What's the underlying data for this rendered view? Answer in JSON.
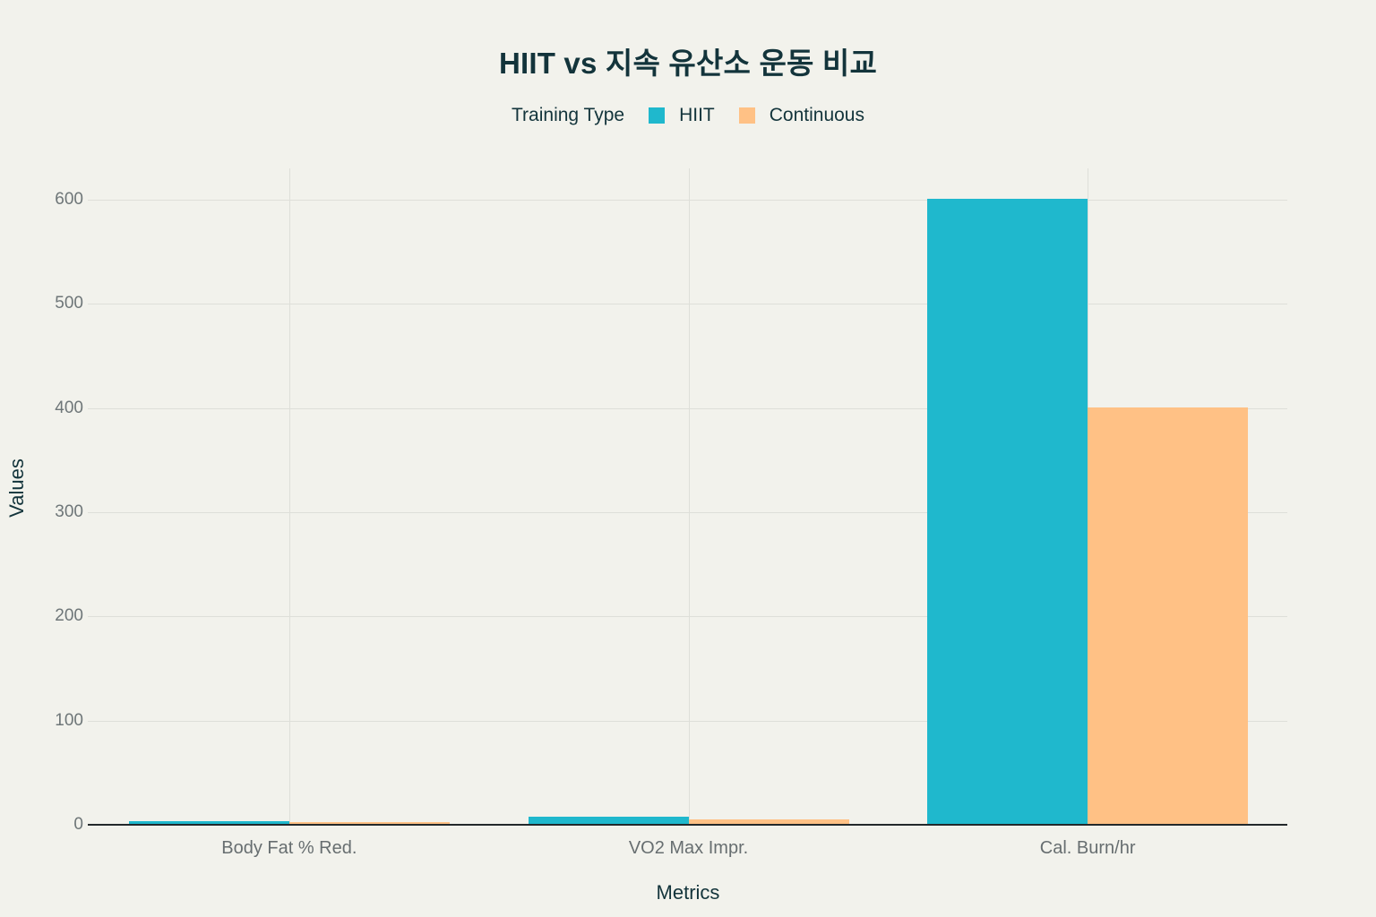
{
  "chart": {
    "title": "HIIT vs 지속 유산소 운동 비교",
    "legend_title": "Training Type",
    "xlabel": "Metrics",
    "ylabel": "Values"
  },
  "colors": {
    "background": "#F2F2EC",
    "title_text": "#13343B",
    "axis_title_text": "#13343B",
    "tick_text": "#6E7678",
    "gridline": "#DEDFD9",
    "axis_line": "#23292B",
    "hiit": "#1FB8CD",
    "continuous": "#FFC185"
  },
  "chart_data": {
    "type": "bar",
    "title": "HIIT vs 지속 유산소 운동 비교",
    "legend_title": "Training Type",
    "legend_position": "top",
    "xlabel": "Metrics",
    "ylabel": "Values",
    "categories": [
      "Body Fat % Red.",
      "VO2 Max Impr.",
      "Cal. Burn/hr"
    ],
    "series": [
      {
        "name": "HIIT",
        "color": "#1FB8CD",
        "values": [
          2.5,
          7,
          600
        ]
      },
      {
        "name": "Continuous",
        "color": "#FFC185",
        "values": [
          1.5,
          4,
          400
        ]
      }
    ],
    "ylim": [
      0,
      630
    ],
    "yticks": [
      0,
      100,
      200,
      300,
      400,
      500,
      600
    ],
    "grid": true
  }
}
